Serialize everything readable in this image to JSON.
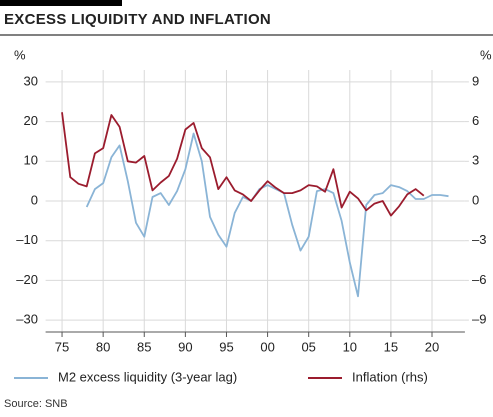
{
  "chart_data": {
    "type": "line",
    "title": "EXCESS LIQUIDITY AND INFLATION",
    "ylabel": "%",
    "y2label": "%",
    "source": "Source: SNB",
    "x": [
      1975,
      1976,
      1977,
      1978,
      1979,
      1980,
      1981,
      1982,
      1983,
      1984,
      1985,
      1986,
      1987,
      1988,
      1989,
      1990,
      1991,
      1992,
      1993,
      1994,
      1995,
      1996,
      1997,
      1998,
      1999,
      2000,
      2001,
      2002,
      2003,
      2004,
      2005,
      2006,
      2007,
      2008,
      2009,
      2010,
      2011,
      2012,
      2013,
      2014,
      2015,
      2016,
      2017,
      2018,
      2019,
      2020,
      2021,
      2022
    ],
    "xlim": [
      1973,
      2024
    ],
    "xticks": [
      {
        "value": 1975,
        "label": "75"
      },
      {
        "value": 1980,
        "label": "80"
      },
      {
        "value": 1985,
        "label": "85"
      },
      {
        "value": 1990,
        "label": "90"
      },
      {
        "value": 1995,
        "label": "95"
      },
      {
        "value": 2000,
        "label": "00"
      },
      {
        "value": 2005,
        "label": "05"
      },
      {
        "value": 2010,
        "label": "10"
      },
      {
        "value": 2015,
        "label": "15"
      },
      {
        "value": 2020,
        "label": "20"
      }
    ],
    "ylim": [
      -33,
      33
    ],
    "yticks": [
      30,
      20,
      10,
      0,
      {
        "value": -10,
        "label": "–10"
      },
      {
        "value": -20,
        "label": "–20"
      },
      {
        "value": -30,
        "label": "–30"
      }
    ],
    "y2lim": [
      -9.9,
      9.9
    ],
    "y2ticks": [
      9,
      6,
      3,
      0,
      {
        "value": -3,
        "label": "–3"
      },
      {
        "value": -6,
        "label": "–6"
      },
      {
        "value": -9,
        "label": "–9"
      }
    ],
    "grid": true,
    "series": [
      {
        "name": "M2 excess liquidity (3-year lag)",
        "color": "#8ab4d6",
        "values": [
          null,
          null,
          null,
          -1.5,
          3,
          4.5,
          11,
          14,
          5,
          -5.5,
          -9,
          1,
          2,
          -1,
          2.5,
          8,
          17,
          10,
          -4,
          -8.5,
          -11.5,
          -3,
          1,
          0,
          3,
          4,
          3,
          2,
          -6,
          -12.5,
          -9,
          2.5,
          3,
          2,
          -5,
          -15.5,
          -24,
          -1,
          1.5,
          2,
          4,
          3.5,
          2.5,
          0.5,
          0.5,
          1.5,
          1.5,
          1.2
        ]
      },
      {
        "name": "Inflation (rhs)",
        "color": "#9b1c2e",
        "axis": "y2",
        "values": [
          6.7,
          1.8,
          1.3,
          1.1,
          3.6,
          4.0,
          6.5,
          5.6,
          3.0,
          2.9,
          3.4,
          0.8,
          1.4,
          1.9,
          3.2,
          5.4,
          5.9,
          4.0,
          3.3,
          0.9,
          1.8,
          0.8,
          0.5,
          0.0,
          0.8,
          1.5,
          1.0,
          0.6,
          0.6,
          0.8,
          1.2,
          1.1,
          0.7,
          2.4,
          -0.5,
          0.7,
          0.2,
          -0.7,
          -0.2,
          0.0,
          -1.1,
          -0.4,
          0.5,
          0.9,
          0.4,
          null,
          null,
          null
        ]
      }
    ]
  }
}
